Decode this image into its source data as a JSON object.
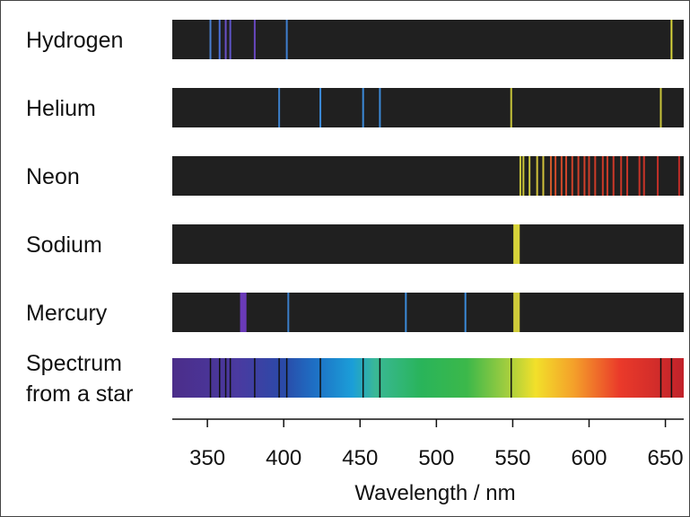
{
  "chart_data": {
    "type": "spectral-lines",
    "xlabel": "Wavelength / nm",
    "xlim": [
      327,
      662
    ],
    "ticks": [
      350,
      400,
      450,
      500,
      550,
      600,
      650
    ],
    "rows": [
      {
        "label": "Hydrogen",
        "lines": [
          {
            "wl": 352,
            "color": "#4a7fd0"
          },
          {
            "wl": 358,
            "color": "#4a6fd8"
          },
          {
            "wl": 362,
            "color": "#6a50c8"
          },
          {
            "wl": 365,
            "color": "#5e55c8"
          },
          {
            "wl": 381,
            "color": "#6848c0"
          },
          {
            "wl": 402,
            "color": "#3f7fd0"
          },
          {
            "wl": 654,
            "color": "#d6d43a"
          }
        ]
      },
      {
        "label": "Helium",
        "lines": [
          {
            "wl": 397,
            "color": "#3b7ec8"
          },
          {
            "wl": 424,
            "color": "#3b8ad8"
          },
          {
            "wl": 452,
            "color": "#3b8ad8"
          },
          {
            "wl": 463,
            "color": "#3b8ad8"
          },
          {
            "wl": 549,
            "color": "#c8c43a"
          },
          {
            "wl": 647,
            "color": "#c8c43a"
          }
        ]
      },
      {
        "label": "Neon",
        "lines": [
          {
            "wl": 555,
            "color": "#c9c43a"
          },
          {
            "wl": 557,
            "color": "#c9c43a"
          },
          {
            "wl": 561,
            "color": "#c9c43a"
          },
          {
            "wl": 566,
            "color": "#d0c23a"
          },
          {
            "wl": 570,
            "color": "#d0c23a"
          },
          {
            "wl": 575,
            "color": "#d05a2a"
          },
          {
            "wl": 578,
            "color": "#d04a2a"
          },
          {
            "wl": 582,
            "color": "#d04a2a"
          },
          {
            "wl": 585,
            "color": "#d0442a"
          },
          {
            "wl": 589,
            "color": "#d0442a"
          },
          {
            "wl": 593,
            "color": "#d0402a"
          },
          {
            "wl": 597,
            "color": "#d0402a"
          },
          {
            "wl": 600,
            "color": "#cc3c28"
          },
          {
            "wl": 604,
            "color": "#cc3c28"
          },
          {
            "wl": 609,
            "color": "#cc3a28"
          },
          {
            "wl": 612,
            "color": "#cc3a28"
          },
          {
            "wl": 616,
            "color": "#cc3828"
          },
          {
            "wl": 621,
            "color": "#cc3828"
          },
          {
            "wl": 625,
            "color": "#c83428"
          },
          {
            "wl": 633,
            "color": "#c83428"
          },
          {
            "wl": 636,
            "color": "#c83428"
          },
          {
            "wl": 645,
            "color": "#c43028"
          },
          {
            "wl": 659,
            "color": "#c02c28"
          }
        ]
      },
      {
        "label": "Sodium",
        "lines": [
          {
            "wl": 551,
            "color": "#d8d43a"
          },
          {
            "wl": 552,
            "color": "#d8d43a"
          },
          {
            "wl": 553,
            "color": "#d8d43a"
          },
          {
            "wl": 554,
            "color": "#d8d43a"
          }
        ]
      },
      {
        "label": "Mercury",
        "lines": [
          {
            "wl": 372,
            "color": "#6a3ab8"
          },
          {
            "wl": 373,
            "color": "#6a3ab8"
          },
          {
            "wl": 374,
            "color": "#6a3ab8"
          },
          {
            "wl": 375,
            "color": "#6a3ab8"
          },
          {
            "wl": 403,
            "color": "#3b7ec8"
          },
          {
            "wl": 480,
            "color": "#3b8ad8"
          },
          {
            "wl": 519,
            "color": "#3b8ad8"
          },
          {
            "wl": 551,
            "color": "#d0cc3a"
          },
          {
            "wl": 552,
            "color": "#d0cc3a"
          },
          {
            "wl": 553,
            "color": "#d0cc3a"
          },
          {
            "wl": 554,
            "color": "#d0cc3a"
          }
        ]
      }
    ],
    "star": {
      "label_line1": "Spectrum",
      "label_line2": "from a star",
      "absorption_lines": [
        352,
        358,
        362,
        365,
        381,
        397,
        402,
        424,
        452,
        463,
        549,
        647,
        654
      ],
      "gradient": [
        {
          "wl": 327,
          "color": "#4b2d8a"
        },
        {
          "wl": 370,
          "color": "#4a3aa0"
        },
        {
          "wl": 400,
          "color": "#2a4aa8"
        },
        {
          "wl": 420,
          "color": "#1e6fc4"
        },
        {
          "wl": 445,
          "color": "#1b9ed8"
        },
        {
          "wl": 460,
          "color": "#3ab896"
        },
        {
          "wl": 490,
          "color": "#29b45a"
        },
        {
          "wl": 520,
          "color": "#3cb84a"
        },
        {
          "wl": 545,
          "color": "#9ccc40"
        },
        {
          "wl": 565,
          "color": "#f2e02a"
        },
        {
          "wl": 590,
          "color": "#f4a02a"
        },
        {
          "wl": 620,
          "color": "#ea3a2a"
        },
        {
          "wl": 662,
          "color": "#c0222a"
        }
      ]
    },
    "colors": {
      "bar_background": "#202020",
      "absorption_line": "#111111",
      "axis": "#111111"
    }
  }
}
